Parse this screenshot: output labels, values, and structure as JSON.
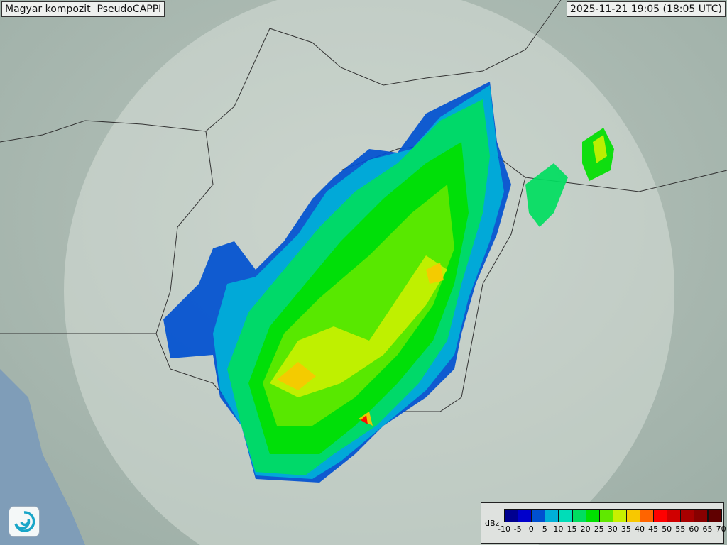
{
  "header": {
    "title": "Magyar kompozit  PseudoCAPPI",
    "timestamp": "2025-11-21 19:05 (18:05 UTC)"
  },
  "legend": {
    "unit": "dBz",
    "ticks": [
      "-10",
      "-5",
      "0",
      "5",
      "10",
      "15",
      "20",
      "25",
      "30",
      "35",
      "40",
      "45",
      "50",
      "55",
      "60",
      "65",
      "70"
    ],
    "colors": [
      "#000090",
      "#0000cc",
      "#0050d0",
      "#00b0d8",
      "#00ddb8",
      "#00dd60",
      "#00e000",
      "#60e800",
      "#c8f000",
      "#f8c800",
      "#ff6400",
      "#ff0000",
      "#d00000",
      "#a80000",
      "#880000",
      "#600000"
    ]
  },
  "logo": {
    "icon": "weather-service-swirl-icon"
  }
}
